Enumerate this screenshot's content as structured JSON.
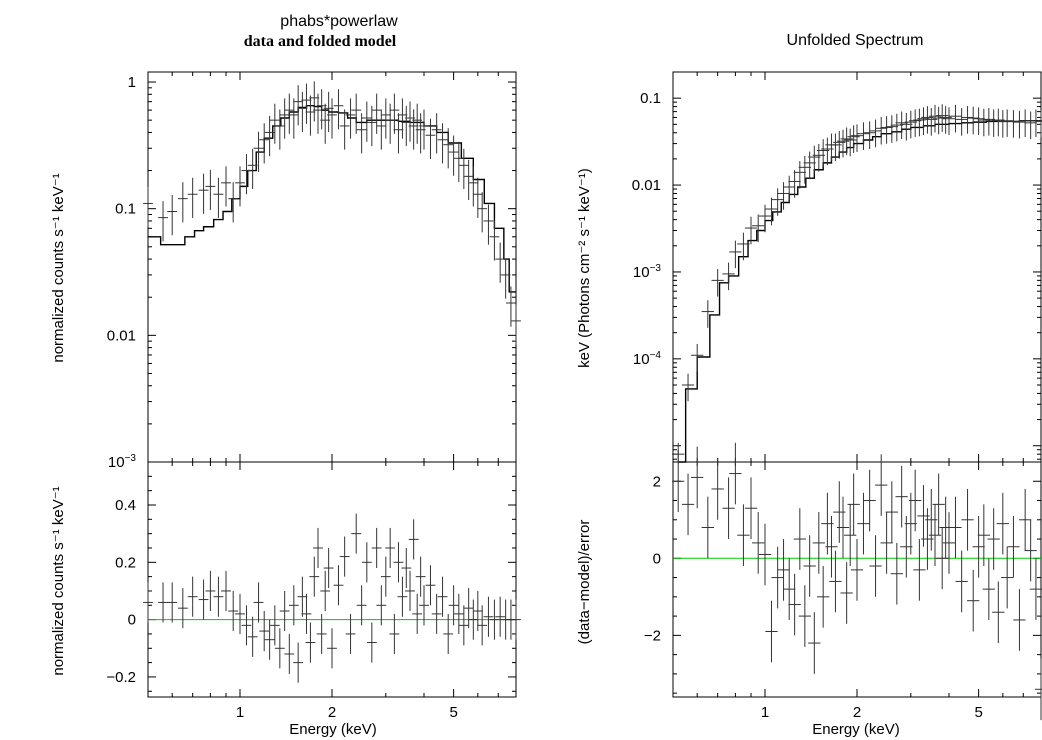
{
  "chart_data": [
    {
      "type": "line",
      "panel": "top-left",
      "title": "phabs*powerlaw",
      "subtitle": "data and folded model",
      "xlabel": "",
      "ylabel": "normalized counts s⁻¹ keV⁻¹",
      "x_scale": "log",
      "y_scale": "log",
      "xlim": [
        0.5,
        8.0
      ],
      "ylim": [
        0.001,
        1.2
      ],
      "x_ticks": [
        1,
        2,
        5
      ],
      "y_ticks": [
        {
          "value": 1,
          "label": "1"
        },
        {
          "value": 0.1,
          "label": "0.1"
        },
        {
          "value": 0.01,
          "label": "0.01"
        },
        {
          "value": 0.001,
          "label": "10",
          "sup": "−3"
        }
      ],
      "series": [
        {
          "style": "step",
          "color": "#000000",
          "x": [
            0.5,
            0.55,
            0.61,
            0.66,
            0.71,
            0.76,
            0.82,
            0.88,
            0.94,
            1.0,
            1.06,
            1.13,
            1.2,
            1.28,
            1.36,
            1.45,
            1.55,
            1.65,
            1.75,
            1.85,
            1.95,
            2.1,
            2.25,
            2.4,
            2.6,
            2.8,
            3.0,
            3.3,
            3.6,
            4.0,
            4.4,
            4.8,
            5.3,
            5.8,
            6.3,
            6.8,
            7.3,
            7.6,
            8.0
          ],
          "values": [
            0.06,
            0.052,
            0.052,
            0.06,
            0.067,
            0.072,
            0.082,
            0.095,
            0.12,
            0.15,
            0.2,
            0.28,
            0.36,
            0.45,
            0.52,
            0.58,
            0.63,
            0.65,
            0.64,
            0.6,
            0.58,
            0.57,
            0.52,
            0.48,
            0.5,
            0.5,
            0.5,
            0.49,
            0.48,
            0.45,
            0.4,
            0.33,
            0.25,
            0.17,
            0.11,
            0.07,
            0.04,
            0.022,
            0.02
          ]
        },
        {
          "style": "errorbar",
          "color": "#000000",
          "x": [
            0.5,
            0.56,
            0.6,
            0.65,
            0.7,
            0.76,
            0.8,
            0.85,
            0.9,
            0.95,
            1.0,
            1.05,
            1.1,
            1.15,
            1.2,
            1.25,
            1.3,
            1.35,
            1.4,
            1.45,
            1.5,
            1.55,
            1.6,
            1.65,
            1.7,
            1.75,
            1.8,
            1.85,
            1.9,
            1.95,
            2.0,
            2.1,
            2.2,
            2.3,
            2.4,
            2.5,
            2.6,
            2.7,
            2.8,
            2.9,
            3.0,
            3.1,
            3.2,
            3.3,
            3.4,
            3.5,
            3.6,
            3.7,
            3.8,
            3.9,
            4.0,
            4.2,
            4.4,
            4.6,
            4.8,
            5.0,
            5.2,
            5.4,
            5.6,
            5.8,
            6.0,
            6.2,
            6.5,
            6.8,
            7.1,
            7.4,
            7.7,
            8.0
          ],
          "values": [
            0.11,
            0.085,
            0.095,
            0.12,
            0.13,
            0.14,
            0.15,
            0.13,
            0.16,
            0.12,
            0.16,
            0.2,
            0.22,
            0.3,
            0.35,
            0.4,
            0.5,
            0.45,
            0.55,
            0.6,
            0.55,
            0.7,
            0.62,
            0.72,
            0.58,
            0.75,
            0.6,
            0.65,
            0.5,
            0.62,
            0.55,
            0.65,
            0.45,
            0.55,
            0.6,
            0.42,
            0.52,
            0.48,
            0.6,
            0.45,
            0.55,
            0.5,
            0.6,
            0.42,
            0.55,
            0.48,
            0.52,
            0.45,
            0.5,
            0.42,
            0.45,
            0.38,
            0.42,
            0.35,
            0.32,
            0.28,
            0.25,
            0.22,
            0.18,
            0.16,
            0.13,
            0.1,
            0.08,
            0.06,
            0.04,
            0.03,
            0.018,
            0.013
          ]
        }
      ]
    },
    {
      "type": "line",
      "panel": "bottom-left",
      "xlabel": "Energy (keV)",
      "ylabel": "normalized counts s⁻¹ keV⁻¹",
      "x_scale": "log",
      "y_scale": "linear",
      "xlim": [
        0.5,
        8.0
      ],
      "ylim": [
        -0.27,
        0.55
      ],
      "x_ticks": [
        1,
        2,
        5
      ],
      "y_ticks": [
        {
          "value": 0.4,
          "label": "0.4"
        },
        {
          "value": 0.2,
          "label": "0.2"
        },
        {
          "value": 0,
          "label": "0"
        },
        {
          "value": -0.2,
          "label": "−0.2"
        }
      ],
      "series": [
        {
          "style": "hline",
          "color": "#00cc00",
          "value": 0
        },
        {
          "style": "errorbar",
          "color": "#000000",
          "x": [
            0.5,
            0.56,
            0.6,
            0.65,
            0.7,
            0.76,
            0.8,
            0.85,
            0.9,
            0.95,
            1.0,
            1.05,
            1.1,
            1.15,
            1.2,
            1.25,
            1.3,
            1.35,
            1.4,
            1.45,
            1.5,
            1.55,
            1.6,
            1.65,
            1.7,
            1.75,
            1.8,
            1.85,
            1.9,
            1.95,
            2.0,
            2.1,
            2.2,
            2.3,
            2.4,
            2.5,
            2.6,
            2.7,
            2.8,
            2.9,
            3.0,
            3.1,
            3.2,
            3.3,
            3.4,
            3.5,
            3.6,
            3.7,
            3.8,
            3.9,
            4.0,
            4.2,
            4.4,
            4.6,
            4.8,
            5.0,
            5.2,
            5.4,
            5.6,
            5.8,
            6.0,
            6.2,
            6.5,
            6.8,
            7.1,
            7.4,
            7.7,
            8.0
          ],
          "values": [
            0.06,
            0.06,
            0.06,
            0.04,
            0.08,
            0.07,
            0.1,
            0.08,
            0.1,
            0.03,
            0.02,
            -0.02,
            -0.06,
            0.06,
            -0.04,
            -0.07,
            -0.02,
            -0.1,
            0.03,
            -0.12,
            0.05,
            -0.15,
            0.08,
            0.02,
            -0.08,
            0.15,
            0.25,
            -0.05,
            0.1,
            0.18,
            -0.1,
            0.12,
            0.22,
            -0.05,
            0.3,
            0.05,
            0.2,
            -0.08,
            0.25,
            0.05,
            0.15,
            0.25,
            -0.05,
            0.2,
            0.08,
            0.18,
            0.1,
            0.28,
            0.02,
            0.15,
            0.05,
            0.12,
            0.02,
            0.08,
            -0.05,
            0.05,
            0.02,
            -0.02,
            0.04,
            0.0,
            0.03,
            -0.02,
            0.01,
            0.0,
            0.01,
            0.0,
            0.0,
            0.0
          ]
        }
      ]
    },
    {
      "type": "line",
      "panel": "top-right",
      "title": "Unfolded Spectrum",
      "xlabel": "",
      "ylabel": "keV (Photons cm⁻² s⁻¹ keV⁻¹)",
      "x_scale": "log",
      "y_scale": "log",
      "xlim": [
        0.5,
        8.0
      ],
      "ylim": [
        6.5e-06,
        0.2
      ],
      "x_ticks": [
        1,
        2,
        5
      ],
      "y_ticks": [
        {
          "value": 0.1,
          "label": "0.1"
        },
        {
          "value": 0.01,
          "label": "0.01"
        },
        {
          "value": 0.001,
          "label": "10",
          "sup": "−3"
        },
        {
          "value": 0.0001,
          "label": "10",
          "sup": "−4"
        }
      ],
      "series": [
        {
          "style": "step",
          "color": "#000000",
          "x": [
            0.52,
            0.55,
            0.6,
            0.66,
            0.71,
            0.76,
            0.82,
            0.88,
            0.94,
            1.0,
            1.06,
            1.13,
            1.2,
            1.28,
            1.36,
            1.45,
            1.55,
            1.65,
            1.75,
            1.85,
            1.95,
            2.1,
            2.25,
            2.4,
            2.6,
            2.8,
            3.0,
            3.3,
            3.6,
            4.0,
            4.4,
            4.8,
            5.3,
            5.8,
            6.3,
            6.8,
            7.3,
            7.6,
            8.0
          ],
          "values": [
            6.5e-06,
            4.5e-05,
            0.000105,
            0.00032,
            0.00075,
            0.0009,
            0.0015,
            0.0023,
            0.003,
            0.0039,
            0.0049,
            0.0063,
            0.0078,
            0.0095,
            0.012,
            0.015,
            0.018,
            0.021,
            0.024,
            0.027,
            0.03,
            0.033,
            0.036,
            0.039,
            0.041,
            0.044,
            0.046,
            0.048,
            0.05,
            0.051,
            0.052,
            0.053,
            0.054,
            0.054,
            0.054,
            0.055,
            0.055,
            0.055,
            0.055
          ]
        },
        {
          "style": "errorbar",
          "color": "#000000",
          "x": [
            0.52,
            0.56,
            0.6,
            0.65,
            0.7,
            0.76,
            0.8,
            0.85,
            0.9,
            0.95,
            1.0,
            1.05,
            1.1,
            1.15,
            1.2,
            1.25,
            1.3,
            1.35,
            1.4,
            1.45,
            1.5,
            1.55,
            1.6,
            1.65,
            1.7,
            1.75,
            1.8,
            1.85,
            1.9,
            1.95,
            2.0,
            2.1,
            2.2,
            2.3,
            2.4,
            2.5,
            2.6,
            2.7,
            2.8,
            2.9,
            3.0,
            3.1,
            3.2,
            3.3,
            3.4,
            3.5,
            3.6,
            3.7,
            3.8,
            3.9,
            4.0,
            4.2,
            4.4,
            4.6,
            4.8,
            5.0,
            5.2,
            5.4,
            5.6,
            5.8,
            6.0,
            6.2,
            6.5,
            6.8,
            7.1,
            7.4,
            7.7,
            8.0
          ],
          "values": [
            8e-06,
            5e-05,
            0.00011,
            0.00035,
            0.0008,
            0.00095,
            0.0017,
            0.0021,
            0.0032,
            0.0034,
            0.0044,
            0.0053,
            0.0068,
            0.008,
            0.0095,
            0.011,
            0.014,
            0.016,
            0.018,
            0.021,
            0.022,
            0.025,
            0.026,
            0.029,
            0.029,
            0.031,
            0.032,
            0.034,
            0.033,
            0.036,
            0.037,
            0.039,
            0.04,
            0.042,
            0.045,
            0.046,
            0.047,
            0.049,
            0.052,
            0.05,
            0.053,
            0.055,
            0.056,
            0.058,
            0.06,
            0.057,
            0.062,
            0.059,
            0.063,
            0.06,
            0.058,
            0.062,
            0.057,
            0.06,
            0.059,
            0.058,
            0.056,
            0.057,
            0.055,
            0.056,
            0.054,
            0.055,
            0.054,
            0.053,
            0.055,
            0.052,
            0.055,
            0.054
          ]
        }
      ]
    },
    {
      "type": "line",
      "panel": "bottom-right",
      "xlabel": "Energy (keV)",
      "ylabel": "(data−model)/error",
      "x_scale": "log",
      "y_scale": "linear",
      "xlim": [
        0.5,
        8.0
      ],
      "ylim": [
        -3.6,
        2.5
      ],
      "x_ticks": [
        1,
        2,
        5
      ],
      "y_ticks": [
        {
          "value": 2,
          "label": "2"
        },
        {
          "value": 0,
          "label": "0"
        },
        {
          "value": -2,
          "label": "−2"
        }
      ],
      "series": [
        {
          "style": "hline",
          "color": "#00cc00",
          "value": 0
        },
        {
          "style": "errorbar",
          "color": "#000000",
          "x": [
            0.52,
            0.56,
            0.6,
            0.65,
            0.7,
            0.76,
            0.8,
            0.85,
            0.9,
            0.95,
            1.0,
            1.05,
            1.1,
            1.15,
            1.2,
            1.25,
            1.3,
            1.35,
            1.4,
            1.45,
            1.5,
            1.55,
            1.6,
            1.65,
            1.7,
            1.75,
            1.8,
            1.85,
            1.9,
            1.95,
            2.0,
            2.1,
            2.2,
            2.3,
            2.4,
            2.5,
            2.6,
            2.7,
            2.8,
            2.9,
            3.0,
            3.1,
            3.2,
            3.3,
            3.4,
            3.5,
            3.6,
            3.7,
            3.8,
            3.9,
            4.0,
            4.2,
            4.4,
            4.6,
            4.8,
            5.0,
            5.2,
            5.4,
            5.6,
            5.8,
            6.0,
            6.2,
            6.5,
            6.8,
            7.1,
            7.4,
            7.7,
            8.0
          ],
          "values": [
            2.0,
            1.4,
            2.1,
            0.8,
            1.8,
            1.3,
            2.2,
            0.6,
            1.3,
            0.4,
            0.1,
            -1.9,
            -0.5,
            -0.3,
            -0.8,
            -1.2,
            0.5,
            -1.5,
            -0.2,
            -2.2,
            0.4,
            -1.0,
            0.9,
            0.3,
            -0.6,
            1.2,
            0.8,
            -0.9,
            0.6,
            1.4,
            -0.3,
            0.9,
            1.5,
            -0.2,
            1.9,
            0.4,
            1.2,
            -0.4,
            1.6,
            0.3,
            0.9,
            1.5,
            -0.3,
            1.1,
            0.5,
            1.0,
            0.6,
            1.4,
            0.0,
            0.8,
            0.4,
            0.8,
            -0.6,
            1.0,
            -1.1,
            0.3,
            0.6,
            -0.8,
            0.5,
            -1.4,
            0.9,
            -0.5,
            0.3,
            -1.6,
            1.0,
            0.2,
            -0.8,
            -3.4
          ]
        }
      ]
    }
  ]
}
